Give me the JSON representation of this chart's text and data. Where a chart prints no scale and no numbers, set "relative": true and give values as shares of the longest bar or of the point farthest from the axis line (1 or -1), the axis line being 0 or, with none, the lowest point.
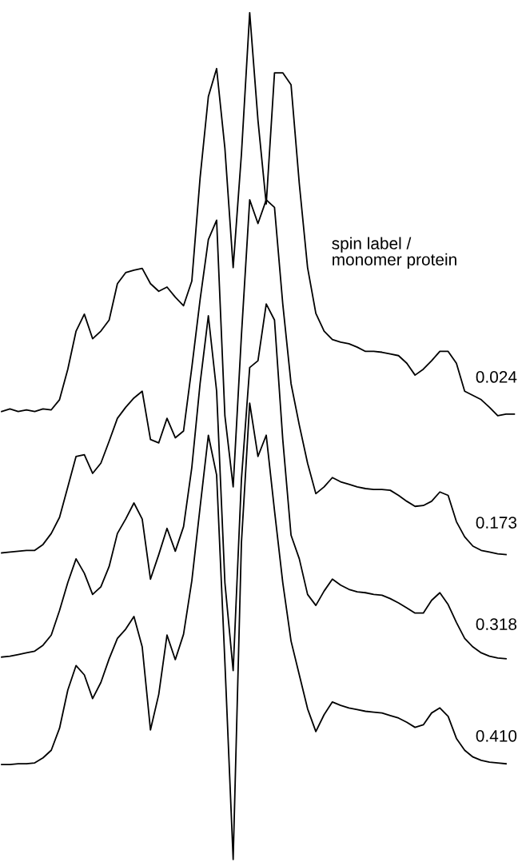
{
  "chart_data": {
    "type": "line",
    "relative": true,
    "legend_title": "spin label /\nmonomer protein",
    "marker": "none",
    "line_style": "solid",
    "categories": [
      null,
      null,
      null,
      null,
      null,
      null,
      null,
      null,
      null,
      null,
      null,
      null,
      null,
      null,
      null,
      null,
      null,
      null,
      null,
      null,
      null,
      null,
      null,
      null,
      null,
      null,
      null,
      null,
      null,
      null,
      null,
      null,
      null,
      null,
      null,
      null,
      null,
      null,
      null,
      null,
      null,
      null,
      null,
      null,
      null,
      null,
      null,
      null,
      null,
      null,
      null,
      null,
      null,
      null,
      null,
      null,
      null,
      null,
      null,
      null,
      null,
      null,
      null
    ],
    "series": [
      {
        "name": "0.024",
        "color": "#000000",
        "values": [
          0.529,
          0.532,
          0.529,
          0.531,
          0.529,
          0.532,
          0.531,
          0.543,
          0.579,
          0.624,
          0.644,
          0.615,
          0.624,
          0.637,
          0.68,
          0.693,
          0.696,
          0.698,
          0.68,
          0.671,
          0.676,
          0.664,
          0.654,
          0.683,
          0.805,
          0.901,
          0.934,
          0.84,
          0.699,
          0.833,
          1.0,
          0.873,
          0.774,
          0.929,
          0.929,
          0.915,
          0.798,
          0.699,
          0.645,
          0.624,
          0.614,
          0.611,
          0.609,
          0.605,
          0.6,
          0.6,
          0.599,
          0.597,
          0.595,
          0.586,
          0.572,
          0.579,
          0.589,
          0.6,
          0.6,
          0.586,
          0.553,
          0.548,
          0.543,
          0.534,
          0.524,
          0.526,
          0.526
        ]
      },
      {
        "name": "0.173",
        "color": "#000000",
        "values": [
          0.362,
          0.363,
          0.364,
          0.365,
          0.365,
          0.372,
          0.385,
          0.404,
          0.44,
          0.476,
          0.478,
          0.456,
          0.468,
          0.494,
          0.521,
          0.534,
          0.545,
          0.553,
          0.496,
          0.492,
          0.521,
          0.498,
          0.506,
          0.581,
          0.661,
          0.732,
          0.755,
          0.524,
          0.44,
          0.619,
          0.779,
          0.751,
          0.779,
          0.77,
          0.656,
          0.562,
          0.513,
          0.468,
          0.432,
          0.44,
          0.451,
          0.446,
          0.443,
          0.44,
          0.438,
          0.437,
          0.437,
          0.436,
          0.43,
          0.423,
          0.417,
          0.418,
          0.423,
          0.434,
          0.43,
          0.399,
          0.381,
          0.37,
          0.365,
          0.363,
          0.361,
          0.36,
          null
        ]
      },
      {
        "name": "0.318",
        "color": "#000000",
        "values": [
          0.239,
          0.24,
          0.242,
          0.244,
          0.246,
          0.253,
          0.265,
          0.294,
          0.327,
          0.355,
          0.338,
          0.313,
          0.322,
          0.346,
          0.385,
          0.402,
          0.421,
          0.402,
          0.331,
          0.36,
          0.391,
          0.364,
          0.393,
          0.463,
          0.562,
          0.642,
          0.553,
          0.327,
          0.223,
          0.449,
          0.581,
          0.589,
          0.656,
          0.637,
          0.496,
          0.383,
          0.355,
          0.313,
          0.3,
          0.317,
          0.331,
          0.324,
          0.319,
          0.316,
          0.315,
          0.313,
          0.312,
          0.308,
          0.303,
          0.297,
          0.291,
          0.291,
          0.306,
          0.315,
          0.301,
          0.28,
          0.261,
          0.251,
          0.244,
          0.24,
          0.238,
          0.237,
          null
        ]
      },
      {
        "name": "0.410",
        "color": "#000000",
        "values": [
          0.112,
          0.112,
          0.113,
          0.113,
          0.114,
          0.12,
          0.129,
          0.155,
          0.2,
          0.229,
          0.218,
          0.19,
          0.209,
          0.237,
          0.261,
          0.272,
          0.287,
          0.251,
          0.153,
          0.195,
          0.265,
          0.236,
          0.266,
          0.329,
          0.416,
          0.501,
          0.454,
          0.233,
          0,
          0.374,
          0.539,
          0.476,
          0.501,
          0.412,
          0.327,
          0.258,
          0.218,
          0.178,
          0.151,
          0.171,
          0.186,
          0.182,
          0.179,
          0.177,
          0.175,
          0.174,
          0.173,
          0.17,
          0.167,
          0.162,
          0.156,
          0.159,
          0.173,
          0.179,
          0.169,
          0.143,
          0.129,
          0.121,
          0.117,
          0.115,
          0.114,
          0.113,
          null
        ]
      }
    ]
  }
}
